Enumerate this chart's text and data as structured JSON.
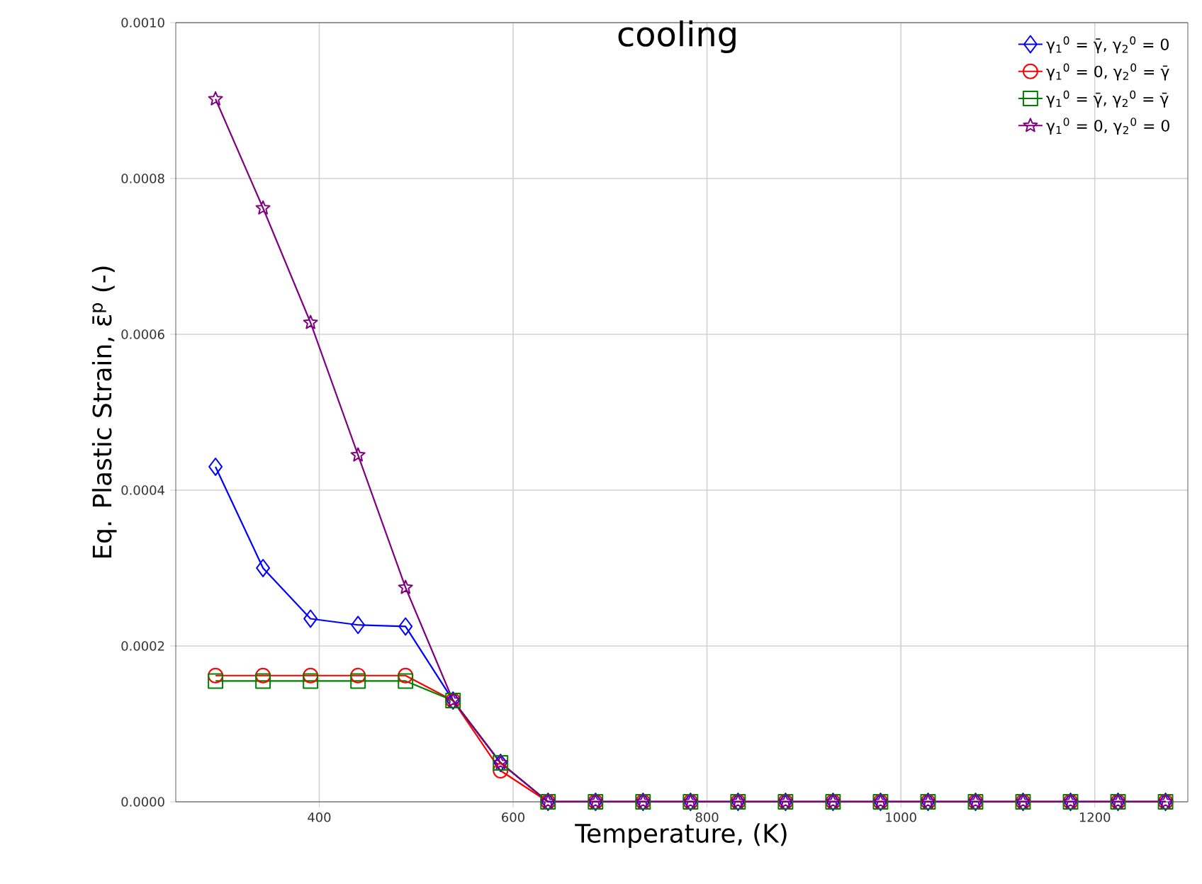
{
  "chart_data": {
    "type": "line",
    "title": "cooling",
    "xlabel": "Temperature, (K)",
    "ylabel": "Eq. Plastic Strain, ε̄$^{p}$ (-)",
    "x": [
      293,
      342,
      391,
      440,
      489,
      538,
      587,
      636,
      685,
      734,
      783,
      832,
      881,
      930,
      979,
      1028,
      1077,
      1126,
      1175,
      1224,
      1273
    ],
    "series": [
      {
        "name": "γ$_{1}$$^{0}$ = γ̄, γ$_{2}$$^{0}$ = 0",
        "color": "#0000ff",
        "marker": "diamond",
        "values": [
          0.00043,
          0.0003,
          0.000235,
          0.000227,
          0.000225,
          0.00013,
          5e-05,
          0,
          0,
          0,
          0,
          0,
          0,
          0,
          0,
          0,
          0,
          0,
          0,
          0,
          0
        ]
      },
      {
        "name": "γ$_{1}$$^{0}$ = 0, γ$_{2}$$^{0}$ = γ̄",
        "color": "#ff0000",
        "marker": "circle",
        "values": [
          0.000162,
          0.000162,
          0.000162,
          0.000162,
          0.000162,
          0.00013,
          4e-05,
          0,
          0,
          0,
          0,
          0,
          0,
          0,
          0,
          0,
          0,
          0,
          0,
          0,
          0
        ]
      },
      {
        "name": "γ$_{1}$$^{0}$ = γ̄, γ$_{2}$$^{0}$ = γ̄",
        "color": "#008000",
        "marker": "square",
        "values": [
          0.000155,
          0.000155,
          0.000155,
          0.000155,
          0.000155,
          0.00013,
          5e-05,
          0,
          0,
          0,
          0,
          0,
          0,
          0,
          0,
          0,
          0,
          0,
          0,
          0,
          0
        ]
      },
      {
        "name": "γ$_{1}$$^{0}$ = 0, γ$_{2}$$^{0}$ = 0",
        "color": "#800080",
        "marker": "star",
        "values": [
          0.000902,
          0.000762,
          0.000615,
          0.000445,
          0.000275,
          0.00013,
          5e-05,
          0,
          0,
          0,
          0,
          0,
          0,
          0,
          0,
          0,
          0,
          0,
          0,
          0,
          0
        ]
      }
    ],
    "xlim": [
      252,
      1296
    ],
    "ylim": [
      0,
      0.001
    ],
    "xticks": [
      400,
      600,
      800,
      1000,
      1200
    ],
    "yticks": [
      {
        "value": 0,
        "label": "0.0000"
      },
      {
        "value": 0.0002,
        "label": "0.0002"
      },
      {
        "value": 0.0004,
        "label": "0.0004"
      },
      {
        "value": 0.0006,
        "label": "0.0006"
      },
      {
        "value": 0.0008,
        "label": "0.0008"
      },
      {
        "value": 0.001,
        "label": "0.0010"
      }
    ],
    "grid": true,
    "legend": "top right",
    "line_style": "solid"
  }
}
